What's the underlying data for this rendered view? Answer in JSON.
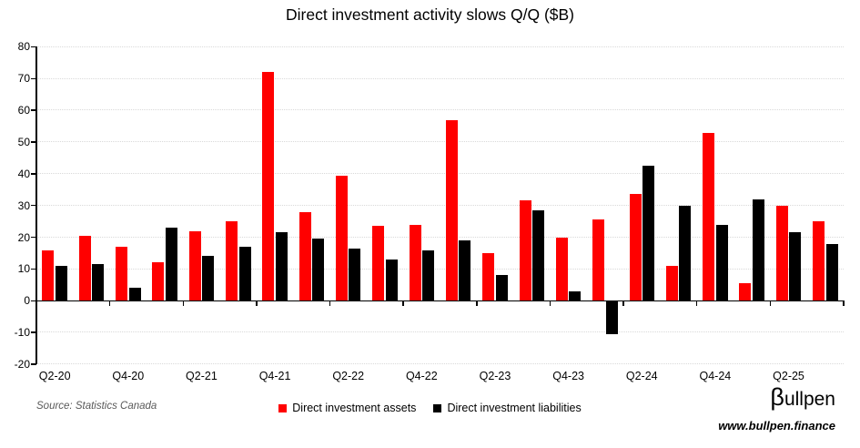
{
  "source": {
    "text": "Source: Statistics Canada"
  },
  "branding": {
    "logo_beta": "β",
    "logo_rest": "ullpen",
    "url": "www.bullpen.finance"
  },
  "chart_data": {
    "type": "bar",
    "title": "Direct investment activity slows Q/Q ($B)",
    "categories": [
      "Q2-20",
      "Q3-20",
      "Q4-20",
      "Q1-21",
      "Q2-21",
      "Q3-21",
      "Q4-21",
      "Q1-22",
      "Q2-22",
      "Q3-22",
      "Q4-22",
      "Q1-23",
      "Q2-23",
      "Q3-23",
      "Q4-23",
      "Q1-24",
      "Q2-24",
      "Q3-24",
      "Q4-24",
      "Q1-25",
      "Q2-25",
      "Q3-25"
    ],
    "series": [
      {
        "name": "Direct investment assets",
        "color": "#ff0000",
        "values": [
          16,
          20.5,
          17,
          12,
          22,
          25,
          72,
          28,
          39.5,
          23.5,
          24,
          57,
          15,
          31.5,
          20,
          25.5,
          33.5,
          11,
          53,
          5.5,
          30,
          25
        ]
      },
      {
        "name": "Direct investment liabilities",
        "color": "#000000",
        "values": [
          11,
          11.5,
          4,
          23,
          14,
          17,
          21.5,
          19.5,
          16.5,
          13,
          16,
          19,
          8,
          28.5,
          3,
          -10.5,
          42.5,
          30,
          24,
          32,
          21.5,
          18
        ]
      }
    ],
    "xlabel": "",
    "ylabel": "",
    "ylim": [
      -20,
      80
    ],
    "y_ticks": [
      80,
      70,
      60,
      50,
      40,
      30,
      20,
      10,
      0,
      -10,
      -20
    ],
    "x_axis_labels_shown": [
      "Q2-20",
      "Q4-20",
      "Q2-21",
      "Q4-21",
      "Q2-22",
      "Q4-22",
      "Q2-23",
      "Q4-23",
      "Q2-24",
      "Q4-24",
      "Q2-25"
    ],
    "grid": "horizontal-dotted",
    "gridline_color": "#d9d9d9",
    "axis_color": "#000000",
    "legend_position": "bottom"
  }
}
